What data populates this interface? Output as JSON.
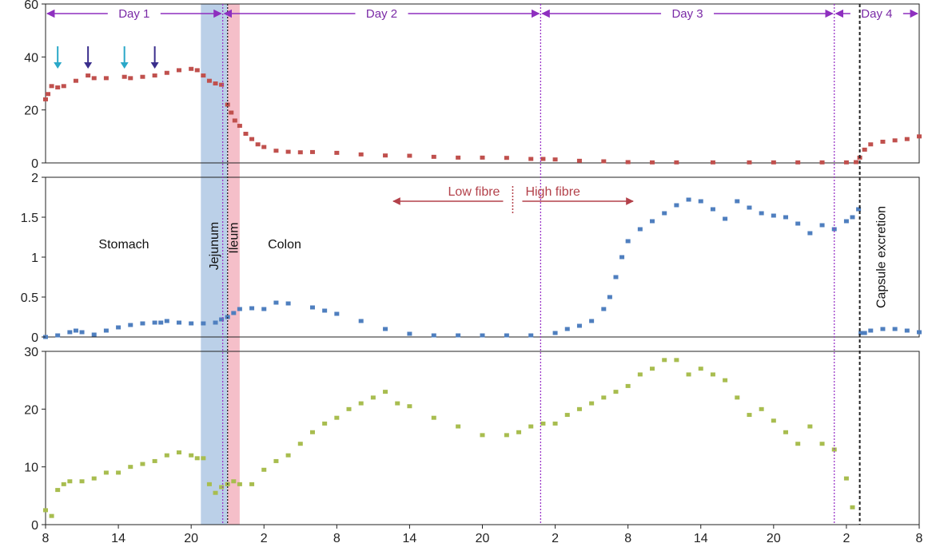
{
  "chart_data": {
    "type": "scatter",
    "x_axis": {
      "ticks": [
        "8",
        "14",
        "20",
        "2",
        "8",
        "14",
        "20",
        "2",
        "8",
        "14",
        "20",
        "2",
        "8"
      ],
      "range": [
        0,
        72
      ]
    },
    "days": [
      {
        "label": "Day 1",
        "start": 0,
        "end": 14.6
      },
      {
        "label": "Day 2",
        "start": 14.6,
        "end": 40.8
      },
      {
        "label": "Day 3",
        "start": 40.8,
        "end": 65.0
      },
      {
        "label": "Day 4",
        "start": 65.0,
        "end": 72
      }
    ],
    "day_dividers": [
      14.6,
      40.8,
      65.0
    ],
    "capsule_excretion_x": 67.1,
    "regions": [
      {
        "label": "Jejunum",
        "start": 12.8,
        "end": 15.0,
        "color": "#b4cbe6"
      },
      {
        "label": "Ileum",
        "start": 15.0,
        "end": 16.0,
        "color": "#f4b8c3"
      }
    ],
    "region_labels": {
      "stomach": "Stomach",
      "colon": "Colon",
      "capsule": "Capsule excretion"
    },
    "fibre": {
      "low": "Low fibre",
      "high": "High fibre",
      "split_x": 38.5
    },
    "arrow_markers": [
      {
        "x": 1,
        "color": "#2aa8c8"
      },
      {
        "x": 3.5,
        "color": "#3a2e8c"
      },
      {
        "x": 6.5,
        "color": "#2aa8c8"
      },
      {
        "x": 9,
        "color": "#3a2e8c"
      }
    ],
    "panels": [
      {
        "name": "",
        "ylim": [
          0,
          60
        ],
        "yticks": [
          "0",
          "20",
          "40",
          "60"
        ],
        "color": "#c0504d",
        "x": [
          0,
          0.2,
          0.5,
          1,
          1.5,
          2.5,
          3.5,
          4,
          5,
          6.5,
          7,
          8,
          9,
          10,
          11,
          12,
          12.5,
          13,
          13.5,
          14,
          14.5,
          15,
          15.3,
          15.6,
          16,
          16.5,
          17,
          17.5,
          18,
          19,
          20,
          21,
          22,
          24,
          26,
          28,
          30,
          32,
          34,
          36,
          38,
          40,
          41,
          42,
          44,
          46,
          48,
          50,
          52,
          55,
          58,
          60,
          62,
          64,
          66,
          66.8,
          67.1,
          67.5,
          68,
          69,
          70,
          71,
          72
        ],
        "y": [
          24,
          26,
          29,
          28.5,
          29,
          31,
          33,
          32,
          32,
          32.5,
          32,
          32.5,
          33,
          34,
          35,
          35.5,
          35,
          33,
          31,
          30,
          29.5,
          22,
          19,
          16,
          14,
          11,
          9,
          7,
          6,
          4.6,
          4.2,
          4.0,
          4.1,
          3.8,
          3.2,
          2.8,
          2.7,
          2.3,
          2.0,
          2.0,
          1.9,
          1.5,
          1.5,
          1.3,
          0.8,
          0.6,
          0.3,
          0.2,
          0.2,
          0.2,
          0.2,
          0.2,
          0.2,
          0.2,
          0.2,
          0.3,
          2,
          5,
          7,
          8,
          8.5,
          9,
          10
        ]
      },
      {
        "name": "",
        "ylim": [
          0,
          2
        ],
        "yticks": [
          "0",
          "0.5",
          "1",
          "1.5",
          "2"
        ],
        "color": "#4f7fbf",
        "x": [
          0,
          1,
          2,
          2.5,
          3,
          4,
          5,
          6,
          7,
          8,
          9,
          9.5,
          10,
          11,
          12,
          13,
          14,
          14.5,
          15,
          15.5,
          16,
          17,
          18,
          19,
          20,
          22,
          23,
          24,
          26,
          28,
          30,
          32,
          34,
          36,
          38,
          40,
          42,
          43,
          44,
          45,
          46,
          46.5,
          47,
          47.5,
          48,
          49,
          50,
          51,
          52,
          53,
          54,
          55,
          56,
          57,
          58,
          59,
          60,
          61,
          62,
          63,
          64,
          65,
          66,
          66.5,
          67,
          67.2,
          67.5,
          68,
          69,
          70,
          71,
          72
        ],
        "y": [
          0,
          0.02,
          0.06,
          0.08,
          0.06,
          0.03,
          0.08,
          0.12,
          0.15,
          0.17,
          0.18,
          0.18,
          0.2,
          0.18,
          0.17,
          0.17,
          0.18,
          0.22,
          0.25,
          0.3,
          0.35,
          0.36,
          0.35,
          0.43,
          0.42,
          0.37,
          0.33,
          0.29,
          0.2,
          0.1,
          0.04,
          0.02,
          0.02,
          0.02,
          0.02,
          0.02,
          0.05,
          0.1,
          0.14,
          0.2,
          0.35,
          0.5,
          0.75,
          1.0,
          1.2,
          1.35,
          1.45,
          1.55,
          1.65,
          1.72,
          1.7,
          1.6,
          1.48,
          1.7,
          1.62,
          1.55,
          1.52,
          1.5,
          1.42,
          1.3,
          1.4,
          1.35,
          1.45,
          1.5,
          1.6,
          0.05,
          0.05,
          0.08,
          0.1,
          0.1,
          0.08,
          0.06
        ]
      },
      {
        "name": "",
        "ylim": [
          0,
          30
        ],
        "yticks": [
          "0",
          "10",
          "20",
          "30"
        ],
        "color": "#a8bd4f",
        "x": [
          0,
          0.5,
          1,
          1.5,
          2,
          3,
          4,
          5,
          6,
          7,
          8,
          9,
          10,
          11,
          12,
          12.5,
          13,
          13.5,
          14,
          14.5,
          15,
          15.5,
          16,
          17,
          18,
          19,
          20,
          21,
          22,
          23,
          24,
          25,
          26,
          27,
          28,
          29,
          30,
          32,
          34,
          36,
          38,
          39,
          40,
          41,
          42,
          43,
          44,
          45,
          46,
          47,
          48,
          49,
          50,
          51,
          52,
          53,
          54,
          55,
          56,
          57,
          58,
          59,
          60,
          61,
          62,
          63,
          64,
          65,
          66,
          66.5
        ],
        "y": [
          2.5,
          1.5,
          6,
          7,
          7.5,
          7.5,
          8,
          9,
          9,
          10,
          10.5,
          11,
          12,
          12.5,
          12,
          11.5,
          11.5,
          7,
          5.5,
          6.5,
          7,
          7.5,
          7,
          7,
          9.5,
          11,
          12,
          14,
          16,
          17.5,
          18.5,
          20,
          21,
          22,
          23,
          21,
          20.5,
          18.5,
          17,
          15.5,
          15.5,
          16,
          17,
          17.5,
          17.5,
          19,
          20,
          21,
          22,
          23,
          24,
          26,
          27,
          28.5,
          28.5,
          26,
          27,
          26,
          25,
          22,
          19,
          20,
          18,
          16,
          14,
          17,
          14,
          13,
          8,
          3
        ]
      }
    ]
  }
}
